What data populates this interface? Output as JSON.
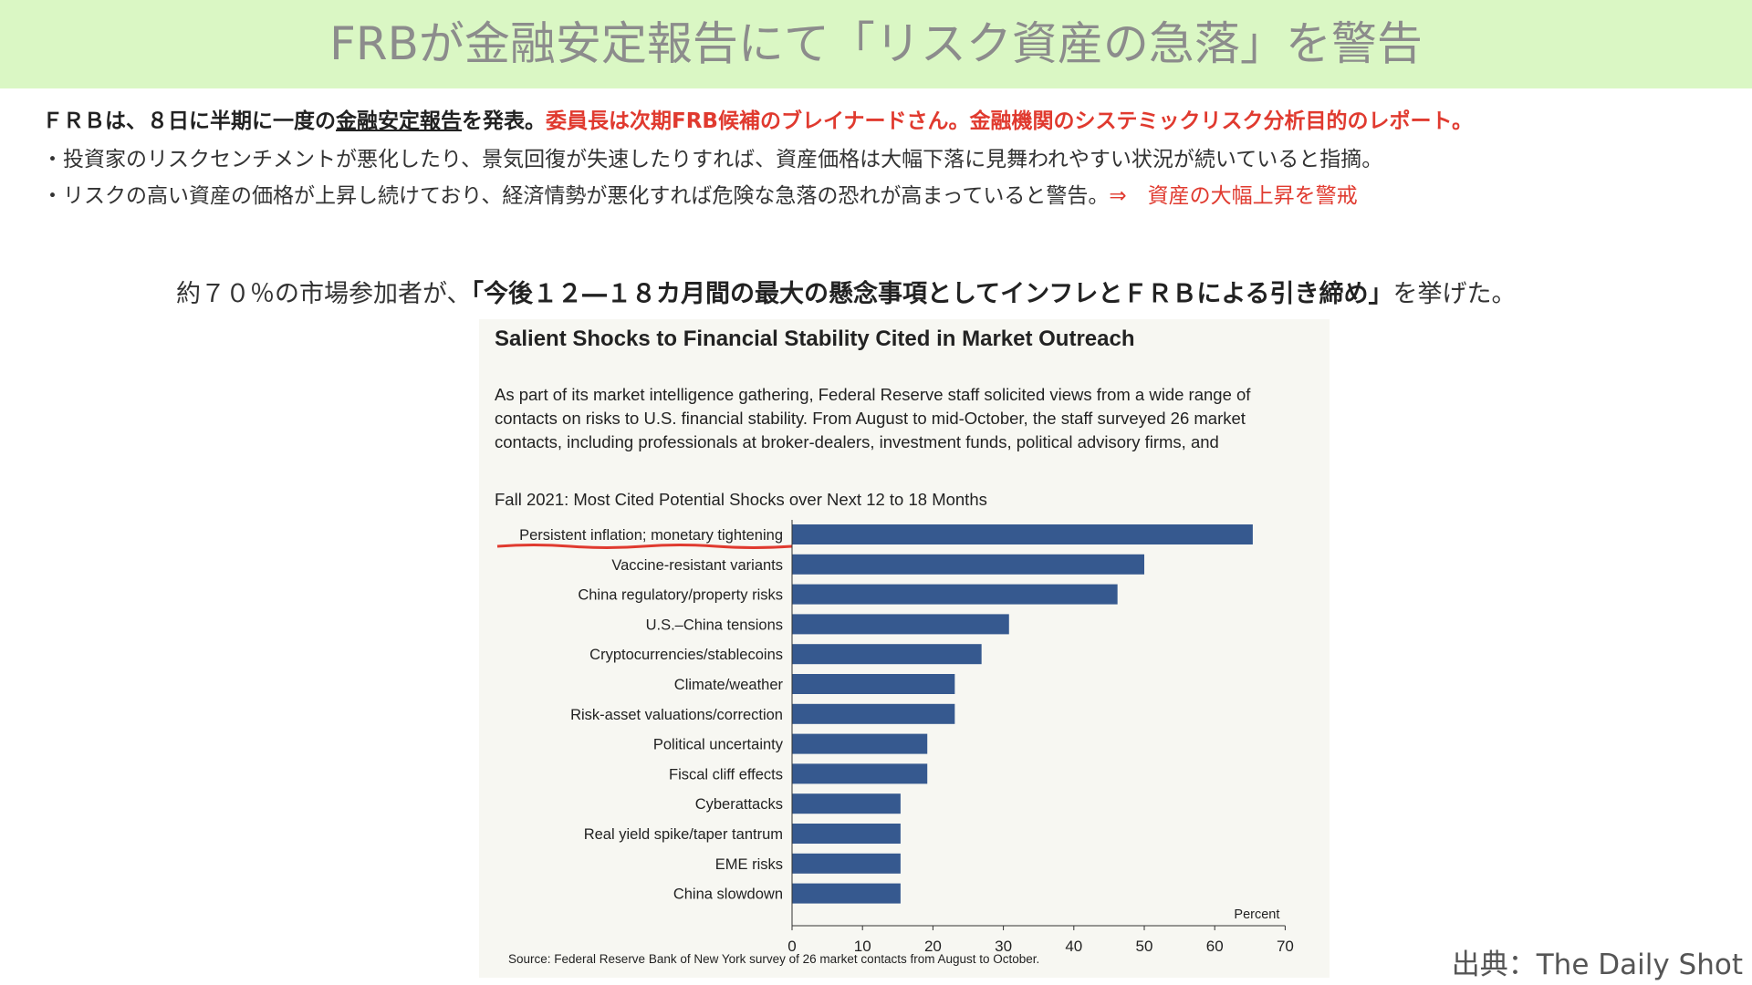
{
  "header": {
    "title": "FRBが金融安定報告にて「リスク資産の急落」を警告"
  },
  "intro": {
    "part1": "ＦＲＢは、８日に半期に一度の",
    "part2": "金融安定報告",
    "part3": "を発表。",
    "part4": "委員長は次期FRB候補のブレイナードさん。金融機関のシステミックリスク分析目的のレポート。"
  },
  "bullets": [
    {
      "text": "・投資家のリスクセンチメントが悪化したり、景気回復が失速したりすれば、資産価格は大幅下落に見舞われやすい状況が続いていると指摘。",
      "emphasis": ""
    },
    {
      "text": "・リスクの高い資産の価格が上昇し続けており、経済情勢が悪化すれば危険な急落の恐れが高まっていると警告。",
      "emphasis": "⇒　資産の大幅上昇を警戒"
    }
  ],
  "note": {
    "prefix": "約７０％の市場参加者が、",
    "bold": "「今後１２―１８カ月間の最大の懸念事項としてインフレとＦＲＢによる引き締め」",
    "suffix": "を挙げた。"
  },
  "chart_data": {
    "type": "bar",
    "orientation": "horizontal",
    "title": "Salient Shocks to Financial Stability Cited in Market Outreach",
    "description": "As part of its market intelligence gathering, Federal Reserve staff solicited views from a wide range of contacts on risks to U.S. financial stability. From August to mid-October, the staff surveyed 26 market contacts, including professionals at broker-dealers, investment funds, political advisory firms, and",
    "subtitle": "Fall 2021: Most Cited Potential Shocks over Next 12 to 18 Months",
    "categories": [
      "Persistent inflation; monetary tightening",
      "Vaccine-resistant variants",
      "China regulatory/property risks",
      "U.S.–China tensions",
      "Cryptocurrencies/stablecoins",
      "Climate/weather",
      "Risk-asset valuations/correction",
      "Political uncertainty",
      "Fiscal cliff effects",
      "Cyberattacks",
      "Real yield spike/taper tantrum",
      "EME risks",
      "China slowdown"
    ],
    "values": [
      65.4,
      50,
      46.2,
      30.8,
      26.9,
      23.1,
      23.1,
      19.2,
      19.2,
      15.4,
      15.4,
      15.4,
      15.4
    ],
    "xlim": [
      0,
      70
    ],
    "xticks": [
      "0",
      "10",
      "20",
      "30",
      "40",
      "50",
      "60",
      "70"
    ],
    "xlabel": "Percent",
    "bar_color": "#36598f",
    "highlight_color": "#e03a2f",
    "grid": false,
    "source": "Source: Federal Reserve Bank of New York survey of 26 market contacts from August to October."
  },
  "credit": "出典：The Daily Shot"
}
